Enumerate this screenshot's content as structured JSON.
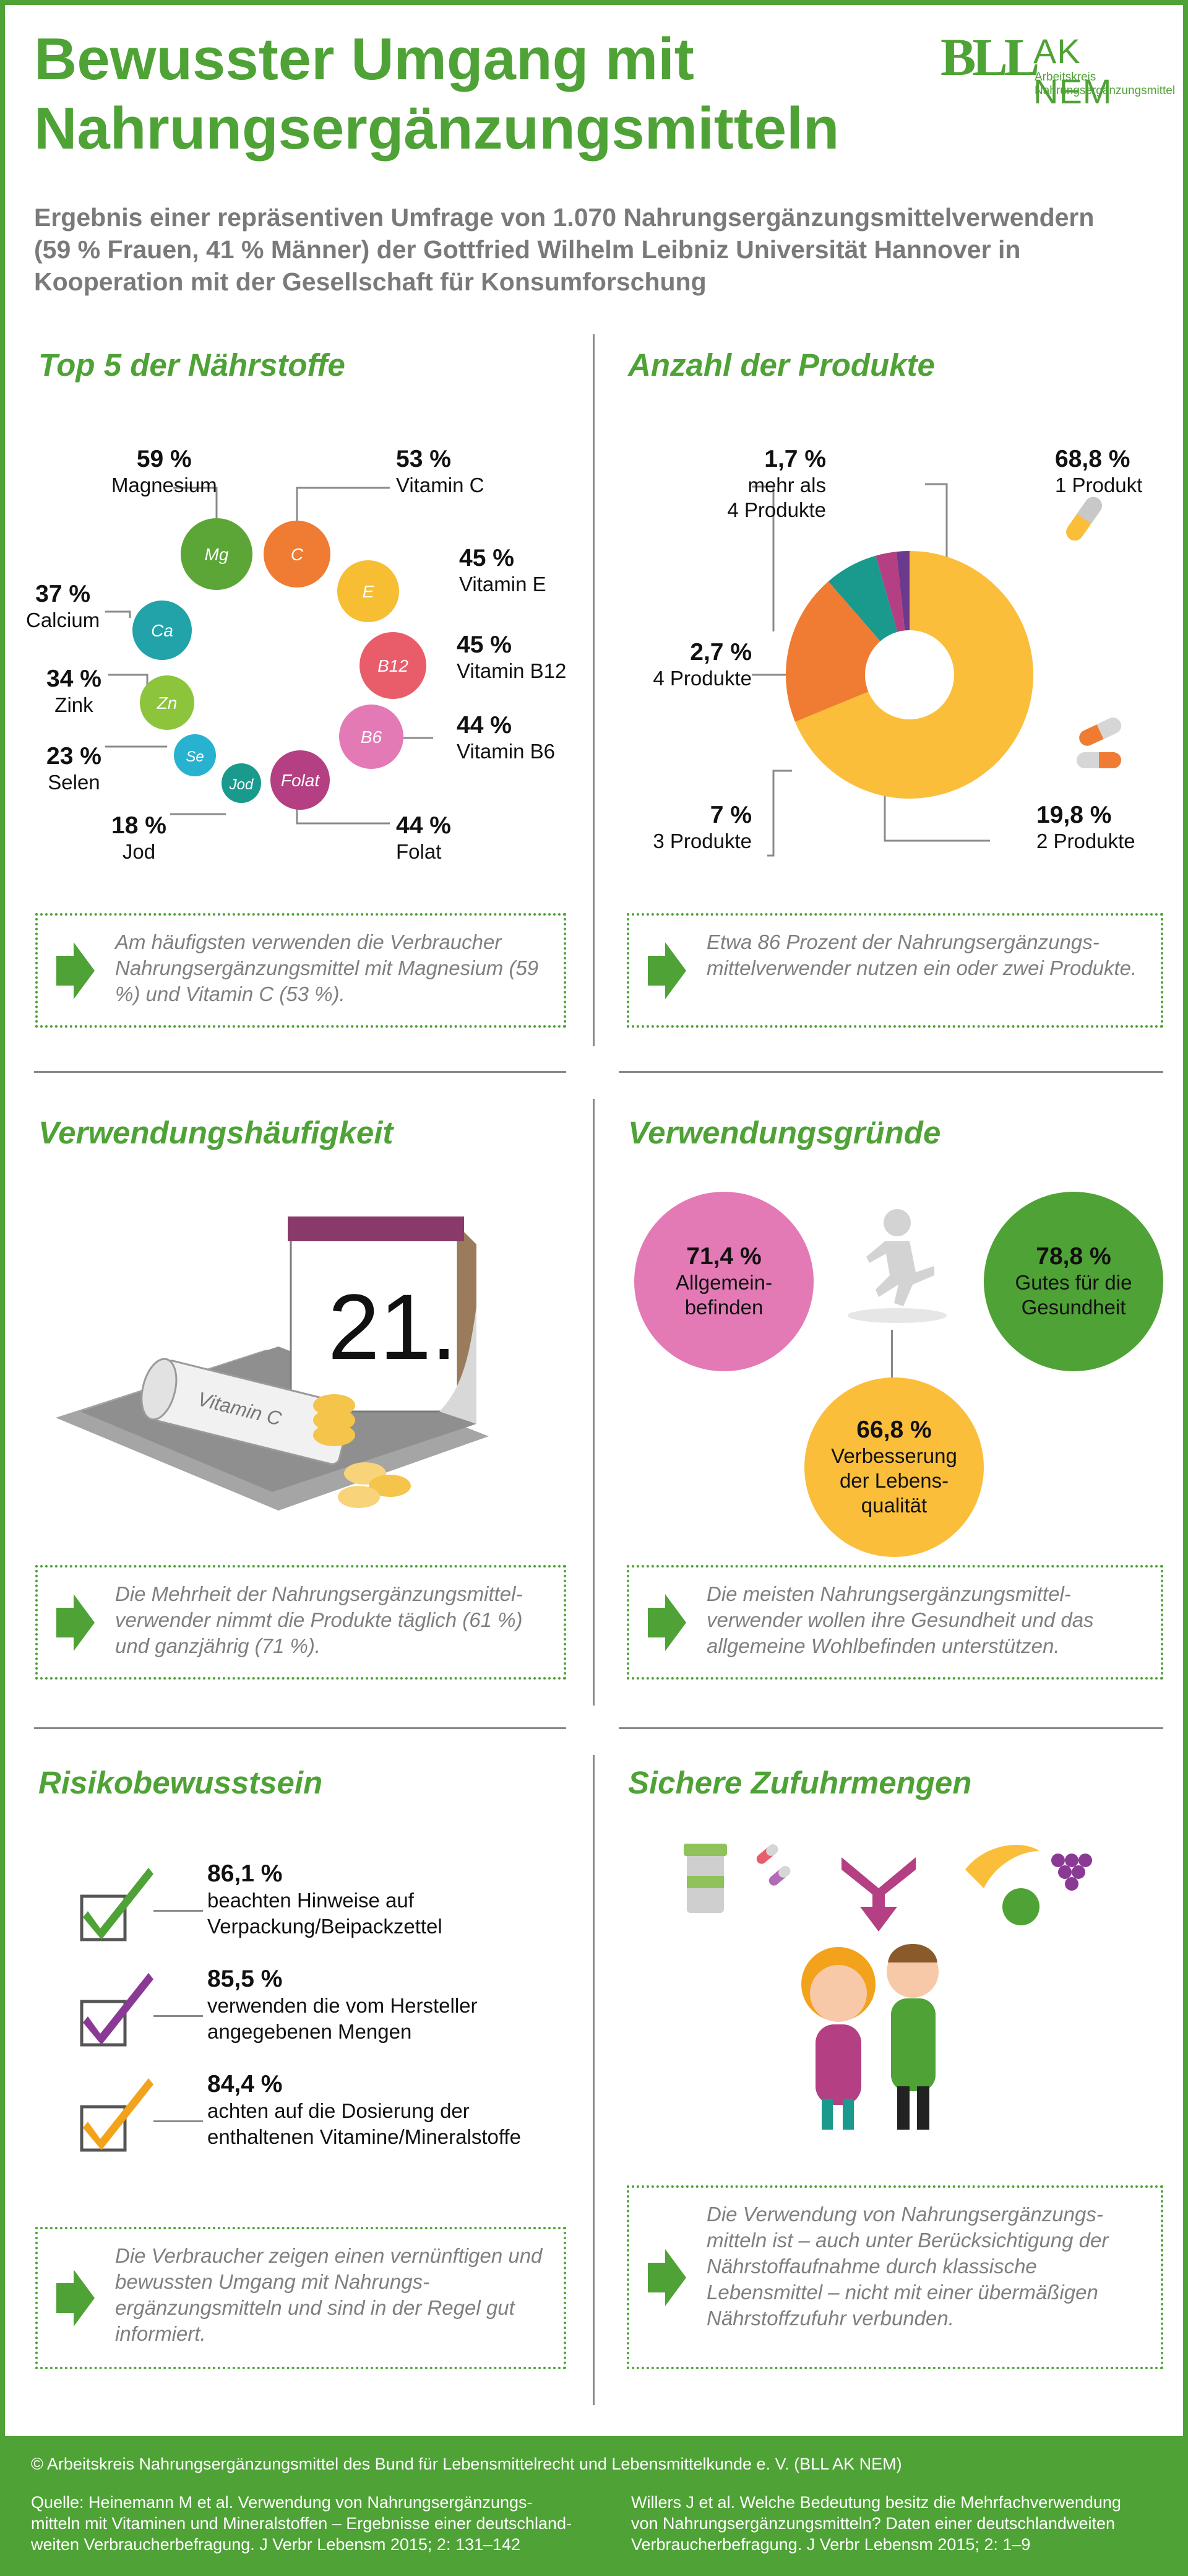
{
  "header": {
    "title_line1": "Bewusster Umgang mit",
    "title_line2": "Nahrungsergänzungsmitteln",
    "subtitle_line1": "Ergebnis einer repräsentiven Umfrage von 1.070 Nahrungsergänzungsmittelverwendern",
    "subtitle_line2": "(59 % Frauen, 41 % Männer) der Gottfried Wilhelm Leibniz Universität Hannover in",
    "subtitle_line3": "Kooperation mit der Gesellschaft für Konsumforschung",
    "logo_bll": "BLL",
    "logo_ak": "AK NEM",
    "logo_sub1": "Arbeitskreis",
    "logo_sub2": "Nahrungsergänzungsmittel",
    "brand_color": "#4fa236"
  },
  "top5": {
    "title": "Top 5 der Nährstoffe",
    "nutrients": [
      {
        "symbol": "Mg",
        "pct": "59 %",
        "label": "Magnesium",
        "color": "#5ba636"
      },
      {
        "symbol": "C",
        "pct": "53 %",
        "label": "Vitamin C",
        "color": "#ef7c32"
      },
      {
        "symbol": "E",
        "pct": "45 %",
        "label": "Vitamin E",
        "color": "#f7bd33"
      },
      {
        "symbol": "B12",
        "pct": "45 %",
        "label": "Vitamin B12",
        "color": "#e95d6b"
      },
      {
        "symbol": "B6",
        "pct": "44 %",
        "label": "Vitamin B6",
        "color": "#e37ab5"
      },
      {
        "symbol": "Folat",
        "pct": "44 %",
        "label": "Folat",
        "color": "#b43f82"
      },
      {
        "symbol": "Jod",
        "pct": "18 %",
        "label": "Jod",
        "color": "#1a9a8c"
      },
      {
        "symbol": "Se",
        "pct": "23 %",
        "label": "Selen",
        "color": "#28b2d0"
      },
      {
        "symbol": "Zn",
        "pct": "34 %",
        "label": "Zink",
        "color": "#8cc43c"
      },
      {
        "symbol": "Ca",
        "pct": "37 %",
        "label": "Calcium",
        "color": "#21a3a9"
      }
    ],
    "note": "Am häufigsten verwenden die Verbraucher Nahrungsergänzungsmittel mit Magnesium (59 %) und Vitamin C (53 %)."
  },
  "anzahl": {
    "title": "Anzahl der Produkte",
    "slices": [
      {
        "pct": "68,8 %",
        "value": 68.8,
        "label": "1 Produkt",
        "color": "#fbbe3b"
      },
      {
        "pct": "19,8 %",
        "value": 19.8,
        "label": "2 Produkte",
        "color": "#ef7c32"
      },
      {
        "pct": "7 %",
        "value": 7.0,
        "label": "3 Produkte",
        "color": "#1a9a8c"
      },
      {
        "pct": "2,7 %",
        "value": 2.7,
        "label": "4 Produkte",
        "color": "#b43f82"
      },
      {
        "pct": "1,7 %",
        "value": 1.7,
        "label": "mehr als 4 Produkte",
        "label_line1": "mehr als",
        "label_line2": "4 Produkte",
        "color": "#6b3a8e"
      }
    ],
    "note": "Etwa 86 Prozent der Nahrungsergänzungs-mittelverwender nutzen ein oder zwei Produkte."
  },
  "haeufigkeit": {
    "title": "Verwendungshäufigkeit",
    "calendar_day": "21.",
    "bottle_label": "Vitamin C",
    "note": "Die Mehrheit der Nahrungsergänzungsmittel-verwender nimmt die Produkte täglich (61 %) und ganzjährig (71 %)."
  },
  "gruende": {
    "title": "Verwendungsgründe",
    "reasons": [
      {
        "pct": "71,4 %",
        "line1": "Allgemein-",
        "line2": "befinden",
        "line3": "",
        "color": "#e37ab5"
      },
      {
        "pct": "78,8 %",
        "line1": "Gutes für die",
        "line2": "Gesundheit",
        "line3": "",
        "color": "#4fa236"
      },
      {
        "pct": "66,8 %",
        "line1": "Verbesserung",
        "line2": "der Lebens-",
        "line3": "qualität",
        "color": "#fbbe3b"
      }
    ],
    "note": "Die meisten Nahrungsergänzungsmittel-verwender wollen ihre Gesundheit und das allgemeine Wohlbefinden unterstützen."
  },
  "risiko": {
    "title": "Risikobewusstsein",
    "items": [
      {
        "pct": "86,1 %",
        "line1": "beachten Hinweise auf",
        "line2": "Verpackung/Beipackzettel",
        "check_color": "#4fa236"
      },
      {
        "pct": "85,5 %",
        "line1": "verwenden die vom Hersteller",
        "line2": "angegebenen Mengen",
        "check_color": "#8a3a94"
      },
      {
        "pct": "84,4 %",
        "line1": "achten auf die Dosierung der",
        "line2": "enthaltenen Vitamine/Mineralstoffe",
        "check_color": "#f3a21b"
      }
    ],
    "note": "Die Verbraucher zeigen einen vernünftigen und bewussten Umgang mit Nahrungs-ergänzungsmitteln und sind in der Regel gut informiert."
  },
  "zufuhr": {
    "title": "Sichere Zufuhrmengen",
    "note": "Die Verwendung von Nahrungsergänzungs-mitteln ist – auch unter Berücksichtigung der Nährstoffaufnahme durch klassische Lebensmittel – nicht mit einer übermäßigen Nährstoffzufuhr verbunden."
  },
  "footer": {
    "copyright": "© Arbeitskreis Nahrungsergänzungsmittel des Bund für Lebensmittelrecht und Lebensmittelkunde e. V. (BLL AK NEM)",
    "source1_line1": "Quelle: Heinemann M et al. Verwendung von Nahrungsergänzungs-",
    "source1_line2": "mitteln mit Vitaminen und Mineralstoffen – Ergebnisse einer deutschland-",
    "source1_line3": "weiten Verbraucherbefragung. J Verbr Lebensm 2015; 2: 131–142",
    "source2_line1": "Willers J et al. Welche Bedeutung besitz die Mehrfachverwendung",
    "source2_line2": "von Nahrungsergänzungsmitteln? Daten einer deutschlandweiten",
    "source2_line3": "Verbraucherbefragung. J Verbr Lebensm 2015; 2: 1–9"
  }
}
